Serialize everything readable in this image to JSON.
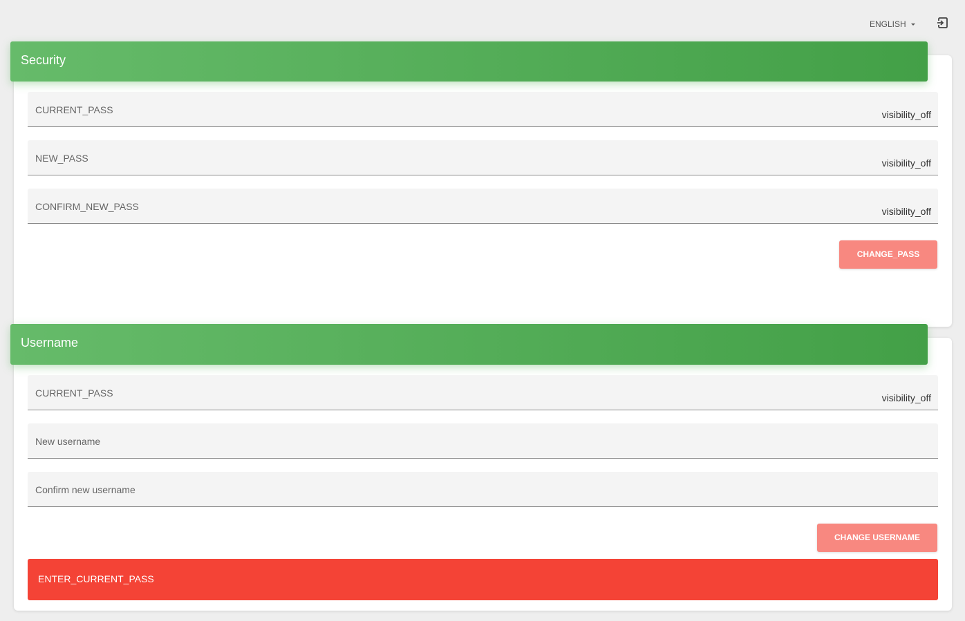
{
  "topbar": {
    "language": "ENGLISH",
    "logout_icon": "sign-in-icon"
  },
  "security": {
    "title": "Security",
    "fields": [
      {
        "label": "CURRENT_PASS",
        "toggle": "visibility_off"
      },
      {
        "label": "NEW_PASS",
        "toggle": "visibility_off"
      },
      {
        "label": "CONFIRM_NEW_PASS",
        "toggle": "visibility_off"
      }
    ],
    "button": "CHANGE_PASS"
  },
  "username": {
    "title": "Username",
    "fields": [
      {
        "label": "CURRENT_PASS",
        "toggle": "visibility_off"
      },
      {
        "label": "New username"
      },
      {
        "label": "Confirm new username"
      }
    ],
    "button": "CHANGE USERNAME",
    "alert": "ENTER_CURRENT_PASS"
  },
  "colors": {
    "header": "#4caf50",
    "button": "#f88880",
    "alert": "#f44336"
  }
}
